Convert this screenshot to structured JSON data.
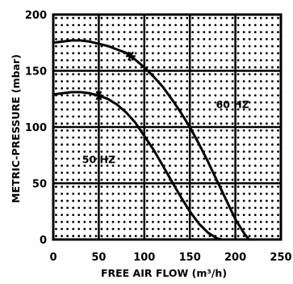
{
  "chart_data": {
    "type": "line",
    "xlabel": "FREE AIR FLOW (m³/h)",
    "ylabel": "METRIC-PRESSURE (mbar)",
    "xlim": [
      0,
      250
    ],
    "ylim": [
      0,
      200
    ],
    "xticks": [
      "0",
      "50",
      "100",
      "150",
      "200",
      "250"
    ],
    "yticks": [
      "0",
      "50",
      "100",
      "150",
      "200"
    ],
    "grid": "dotted",
    "series": [
      {
        "x": [
          0,
          10,
          20,
          30,
          40,
          50,
          60,
          70,
          80,
          90,
          100,
          110,
          120,
          130,
          140,
          150,
          160,
          170,
          180,
          190,
          200,
          210,
          215
        ],
        "y": [
          175,
          176,
          177,
          177,
          176,
          174,
          172,
          169,
          166,
          160,
          153,
          145,
          136,
          125,
          113,
          100,
          85,
          69,
          52,
          35,
          18,
          5,
          0
        ]
      },
      {
        "x": [
          0,
          10,
          20,
          30,
          40,
          50,
          60,
          70,
          80,
          90,
          100,
          110,
          120,
          130,
          140,
          150,
          160,
          170,
          180,
          185
        ],
        "y": [
          129,
          130,
          131,
          131,
          130,
          128,
          125,
          120,
          113,
          104,
          92,
          80,
          66,
          52,
          38,
          25,
          14,
          6,
          1,
          0
        ]
      }
    ],
    "annotations": [
      {
        "text": "60 HZ",
        "x": 197,
        "y": 117
      },
      {
        "text": "50 HZ",
        "x": 50,
        "y": 68
      }
    ],
    "markers": [
      {
        "symbol": "*",
        "x": 85,
        "y": 163
      },
      {
        "symbol": "*",
        "x": 50,
        "y": 128
      }
    ]
  }
}
